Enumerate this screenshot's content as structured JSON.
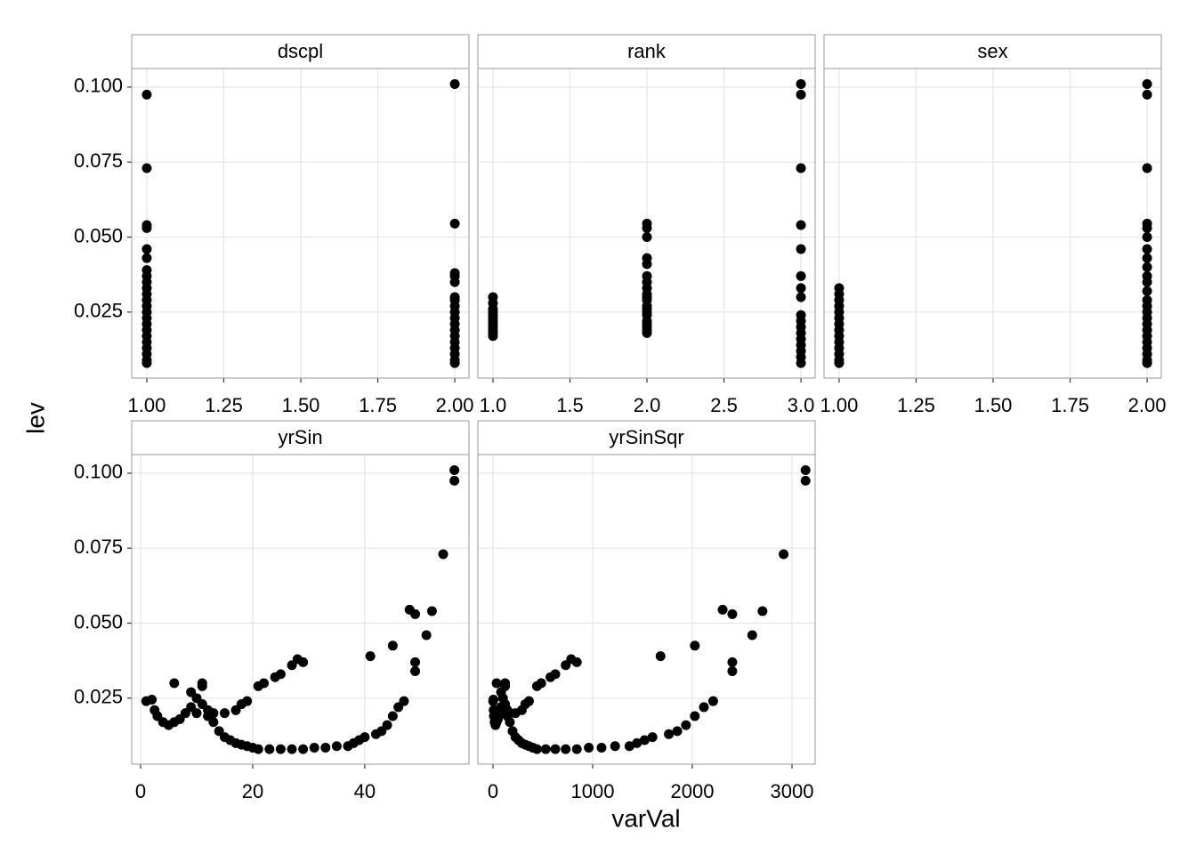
{
  "ylabel": "lev",
  "xlabel": "varVal",
  "chart_data": [
    {
      "type": "scatter",
      "title": "dscpl",
      "color": "#000000",
      "grid": true,
      "xlim": [
        0.951,
        2.046
      ],
      "ylim": [
        0.003,
        0.1062
      ],
      "xticks": [
        {
          "value": 1,
          "label": "1.00"
        },
        1.25,
        {
          "value": 1.5,
          "label": "1.50"
        },
        1.75,
        {
          "value": 2,
          "label": "2.00"
        }
      ],
      "yticks": [
        {
          "value": 0.025,
          "label": "0.025"
        },
        {
          "value": 0.05,
          "label": "0.050"
        },
        0.075,
        {
          "value": 0.1,
          "label": "0.100"
        }
      ],
      "x": [
        1,
        1,
        1,
        1,
        1,
        1,
        1,
        1,
        1,
        1,
        1,
        1,
        1,
        1,
        1,
        1,
        1,
        1,
        1,
        1,
        1,
        1,
        1,
        2,
        2,
        2,
        2,
        2,
        2,
        2,
        2,
        2,
        2,
        2,
        2,
        2,
        2,
        2,
        2,
        2,
        2
      ],
      "values": [
        0.0975,
        0.073,
        0.054,
        0.053,
        0.046,
        0.043,
        0.039,
        0.037,
        0.035,
        0.033,
        0.031,
        0.029,
        0.027,
        0.025,
        0.023,
        0.021,
        0.019,
        0.017,
        0.015,
        0.013,
        0.011,
        0.009,
        0.008,
        0.101,
        0.0545,
        0.038,
        0.037,
        0.035,
        0.03,
        0.029,
        0.027,
        0.025,
        0.023,
        0.021,
        0.019,
        0.017,
        0.015,
        0.013,
        0.011,
        0.009,
        0.008
      ]
    },
    {
      "type": "scatter",
      "title": "rank",
      "color": "#000000",
      "grid": true,
      "xlim": [
        0.902,
        3.092
      ],
      "ylim": [
        0.003,
        0.1062
      ],
      "xticks": [
        {
          "value": 1,
          "label": "1.0"
        },
        1.5,
        {
          "value": 2,
          "label": "2.0"
        },
        2.5,
        {
          "value": 3,
          "label": "3.0"
        }
      ],
      "yticks": [
        {
          "value": 0.025,
          "label": "0.025"
        },
        {
          "value": 0.05,
          "label": "0.050"
        },
        0.075,
        {
          "value": 0.1,
          "label": "0.100"
        }
      ],
      "x": [
        1,
        1,
        1,
        1,
        1,
        1,
        1,
        1,
        1,
        1,
        1,
        1,
        2,
        2,
        2,
        2,
        2,
        2,
        2,
        2,
        2,
        2,
        2,
        2,
        2,
        2,
        2,
        2,
        2,
        2,
        2,
        2,
        3,
        3,
        3,
        3,
        3,
        3,
        3,
        3,
        3,
        3,
        3,
        3,
        3,
        3,
        3,
        3,
        3
      ],
      "values": [
        0.03,
        0.028,
        0.026,
        0.025,
        0.024,
        0.023,
        0.022,
        0.021,
        0.02,
        0.019,
        0.018,
        0.017,
        0.0545,
        0.053,
        0.05,
        0.043,
        0.041,
        0.037,
        0.035,
        0.033,
        0.031,
        0.03,
        0.029,
        0.027,
        0.026,
        0.025,
        0.024,
        0.022,
        0.021,
        0.02,
        0.019,
        0.018,
        0.101,
        0.0975,
        0.073,
        0.054,
        0.046,
        0.037,
        0.033,
        0.03,
        0.024,
        0.022,
        0.02,
        0.018,
        0.016,
        0.014,
        0.012,
        0.01,
        0.008
      ]
    },
    {
      "type": "scatter",
      "title": "sex",
      "color": "#000000",
      "grid": true,
      "xlim": [
        0.951,
        2.046
      ],
      "ylim": [
        0.003,
        0.1062
      ],
      "xticks": [
        {
          "value": 1,
          "label": "1.00"
        },
        1.25,
        {
          "value": 1.5,
          "label": "1.50"
        },
        1.75,
        {
          "value": 2,
          "label": "2.00"
        }
      ],
      "yticks": [
        {
          "value": 0.025,
          "label": "0.025"
        },
        {
          "value": 0.05,
          "label": "0.050"
        },
        0.075,
        {
          "value": 0.1,
          "label": "0.100"
        }
      ],
      "x": [
        1,
        1,
        1,
        1,
        1,
        1,
        1,
        1,
        1,
        1,
        1,
        1,
        1,
        1,
        2,
        2,
        2,
        2,
        2,
        2,
        2,
        2,
        2,
        2,
        2,
        2,
        2,
        2,
        2,
        2,
        2,
        2,
        2,
        2,
        2,
        2,
        2,
        2
      ],
      "values": [
        0.033,
        0.031,
        0.029,
        0.027,
        0.025,
        0.023,
        0.021,
        0.019,
        0.017,
        0.015,
        0.013,
        0.011,
        0.009,
        0.008,
        0.101,
        0.0975,
        0.073,
        0.0545,
        0.053,
        0.05,
        0.046,
        0.043,
        0.04,
        0.037,
        0.035,
        0.032,
        0.029,
        0.027,
        0.025,
        0.023,
        0.021,
        0.019,
        0.017,
        0.015,
        0.013,
        0.011,
        0.009,
        0.008
      ]
    },
    {
      "type": "scatter",
      "title": "yrSin",
      "color": "#000000",
      "grid": true,
      "xlim": [
        -1.59,
        58.6
      ],
      "ylim": [
        0.003,
        0.1062
      ],
      "xticks": [
        0,
        20,
        40
      ],
      "yticks": [
        {
          "value": 0.025,
          "label": "0.025"
        },
        {
          "value": 0.05,
          "label": "0.050"
        },
        0.075,
        {
          "value": 0.1,
          "label": "0.100"
        }
      ],
      "x": [
        1,
        2,
        2.5,
        3,
        4,
        5,
        6,
        6,
        7,
        8,
        9,
        9,
        10,
        10,
        11,
        11,
        11,
        12,
        12,
        13,
        13,
        14,
        15,
        15,
        16,
        17,
        17,
        18,
        18,
        19,
        19,
        20,
        21,
        21,
        22,
        23,
        24,
        25,
        25,
        27,
        27,
        28,
        29,
        29,
        31,
        33,
        35,
        37,
        38,
        39,
        40,
        41,
        42,
        43,
        44,
        45,
        45,
        46,
        47,
        48,
        49,
        49,
        49,
        51,
        52,
        54,
        56,
        56
      ],
      "values": [
        0.024,
        0.0245,
        0.021,
        0.019,
        0.017,
        0.016,
        0.03,
        0.017,
        0.018,
        0.02,
        0.027,
        0.022,
        0.025,
        0.02,
        0.03,
        0.029,
        0.023,
        0.021,
        0.019,
        0.02,
        0.017,
        0.014,
        0.012,
        0.02,
        0.011,
        0.021,
        0.01,
        0.023,
        0.0095,
        0.024,
        0.009,
        0.0085,
        0.029,
        0.008,
        0.03,
        0.008,
        0.032,
        0.033,
        0.008,
        0.036,
        0.008,
        0.038,
        0.037,
        0.008,
        0.0085,
        0.0085,
        0.009,
        0.009,
        0.01,
        0.011,
        0.012,
        0.039,
        0.013,
        0.014,
        0.016,
        0.019,
        0.0425,
        0.022,
        0.024,
        0.0545,
        0.053,
        0.037,
        0.034,
        0.046,
        0.054,
        0.073,
        0.0975,
        0.101
      ]
    },
    {
      "type": "scatter",
      "title": "yrSinSqr",
      "color": "#000000",
      "grid": true,
      "xlim": [
        -152,
        3232
      ],
      "ylim": [
        0.003,
        0.1062
      ],
      "xticks": [
        0,
        1000,
        2000,
        3000
      ],
      "yticks": [
        {
          "value": 0.025,
          "label": "0.025"
        },
        {
          "value": 0.05,
          "label": "0.050"
        },
        0.075,
        {
          "value": 0.1,
          "label": "0.100"
        }
      ],
      "x": [
        1,
        4,
        6.25,
        9,
        16,
        25,
        36,
        36,
        49,
        64,
        81,
        81,
        100,
        100,
        121,
        121,
        121,
        144,
        144,
        169,
        169,
        196,
        225,
        225,
        256,
        289,
        289,
        324,
        324,
        361,
        361,
        400,
        441,
        441,
        484,
        529,
        576,
        625,
        625,
        729,
        729,
        784,
        841,
        841,
        961,
        1089,
        1225,
        1369,
        1444,
        1521,
        1600,
        1681,
        1764,
        1849,
        1936,
        2025,
        2025,
        2116,
        2209,
        2304,
        2401,
        2401,
        2401,
        2601,
        2704,
        2916,
        3136,
        3136
      ],
      "values": [
        0.024,
        0.0245,
        0.021,
        0.019,
        0.017,
        0.016,
        0.03,
        0.017,
        0.018,
        0.02,
        0.027,
        0.022,
        0.025,
        0.02,
        0.03,
        0.029,
        0.023,
        0.021,
        0.019,
        0.02,
        0.017,
        0.014,
        0.012,
        0.02,
        0.011,
        0.021,
        0.01,
        0.023,
        0.0095,
        0.024,
        0.009,
        0.0085,
        0.029,
        0.008,
        0.03,
        0.008,
        0.032,
        0.033,
        0.008,
        0.036,
        0.008,
        0.038,
        0.037,
        0.008,
        0.0085,
        0.0085,
        0.009,
        0.009,
        0.01,
        0.011,
        0.012,
        0.039,
        0.013,
        0.014,
        0.016,
        0.019,
        0.0425,
        0.022,
        0.024,
        0.0545,
        0.053,
        0.037,
        0.034,
        0.046,
        0.054,
        0.073,
        0.0975,
        0.101
      ]
    }
  ]
}
